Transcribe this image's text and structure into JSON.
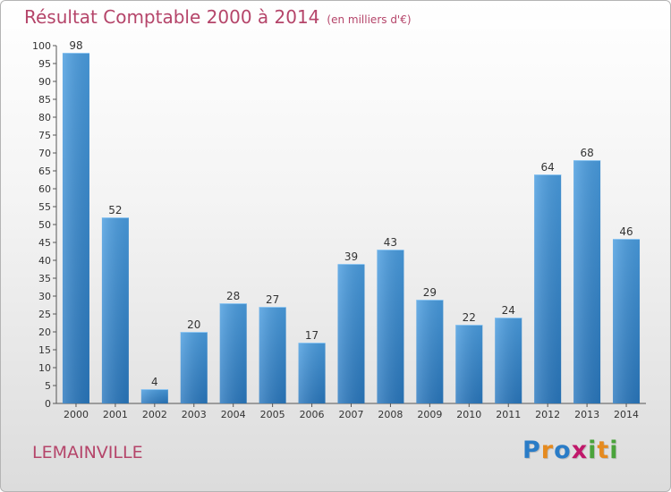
{
  "header": {
    "title": "Résultat Comptable 2000 à 2014",
    "unit": "(en milliers d'€)"
  },
  "commune": "LEMAINVILLE",
  "logo": {
    "text": "Proxiti",
    "letters": [
      {
        "char": "P",
        "color": "#2a7cc7"
      },
      {
        "char": "r",
        "color": "#e58a1f"
      },
      {
        "char": "o",
        "color": "#2a7cc7"
      },
      {
        "char": "x",
        "color": "#c0186a"
      },
      {
        "char": "i",
        "color": "#4aa33b"
      },
      {
        "char": "t",
        "color": "#e58a1f"
      },
      {
        "char": "i",
        "color": "#4aa33b"
      }
    ]
  },
  "chart_data": {
    "type": "bar",
    "title": "Résultat Comptable 2000 à 2014",
    "categories": [
      "2000",
      "2001",
      "2002",
      "2003",
      "2004",
      "2005",
      "2006",
      "2007",
      "2008",
      "2009",
      "2010",
      "2011",
      "2012",
      "2013",
      "2014"
    ],
    "values": [
      98,
      52,
      4,
      20,
      28,
      27,
      17,
      39,
      43,
      29,
      22,
      24,
      64,
      68,
      46
    ],
    "ylim": [
      0,
      100
    ],
    "ytick_step": 5,
    "grid": false,
    "bar_color": "#4a9de0",
    "bar_color_dark": "#2a78be"
  }
}
